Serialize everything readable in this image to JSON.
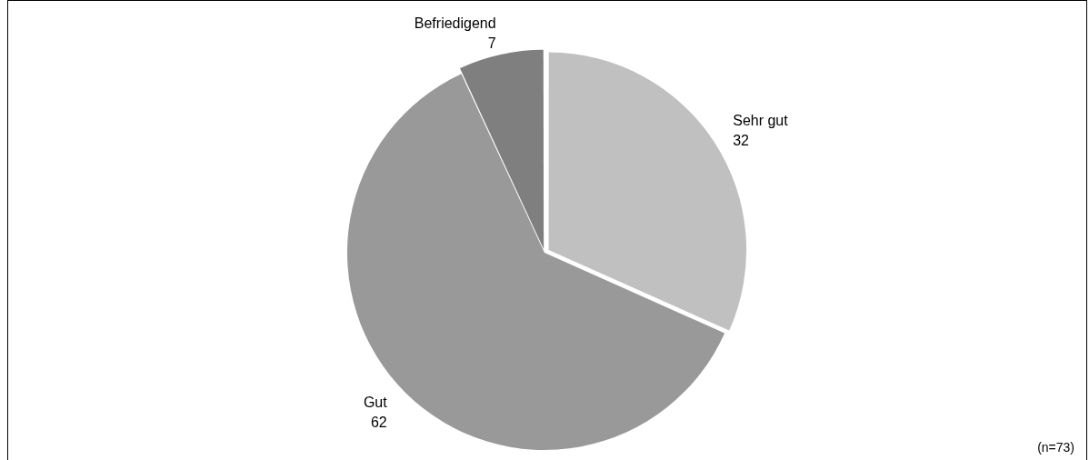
{
  "chart_data": {
    "type": "pie",
    "categories": [
      "Sehr gut",
      "Gut",
      "Befriedigend"
    ],
    "values": [
      32,
      62,
      7
    ],
    "colors": [
      "#c0c0c0",
      "#999999",
      "#7f7f7f"
    ],
    "data_labels": true,
    "legend": false,
    "annotations": [
      "(n=73)"
    ]
  }
}
